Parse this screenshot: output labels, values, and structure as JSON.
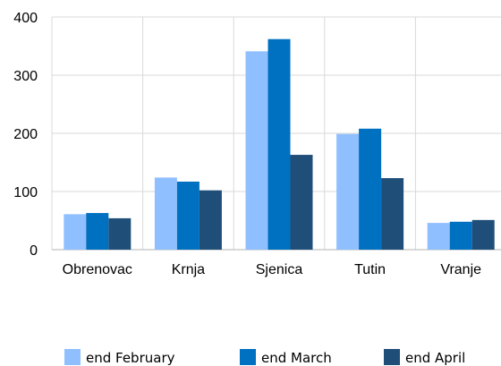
{
  "chart_data": {
    "type": "bar",
    "title": "",
    "xlabel": "",
    "ylabel": "",
    "categories": [
      "Obrenovac",
      "Krnja",
      "Sjenica",
      "Tutin",
      "Vranje"
    ],
    "series": [
      {
        "name": "end February",
        "color": "#8fbfff",
        "values": [
          61,
          124,
          341,
          199,
          46
        ]
      },
      {
        "name": "end March",
        "color": "#0070c0",
        "values": [
          63,
          117,
          362,
          208,
          48
        ]
      },
      {
        "name": "end April",
        "color": "#1f4e79",
        "values": [
          54,
          102,
          163,
          123,
          51
        ]
      }
    ],
    "ylim": [
      0,
      400
    ],
    "yticks": [
      0,
      100,
      200,
      300,
      400
    ],
    "grid": true,
    "legend_position": "bottom"
  }
}
